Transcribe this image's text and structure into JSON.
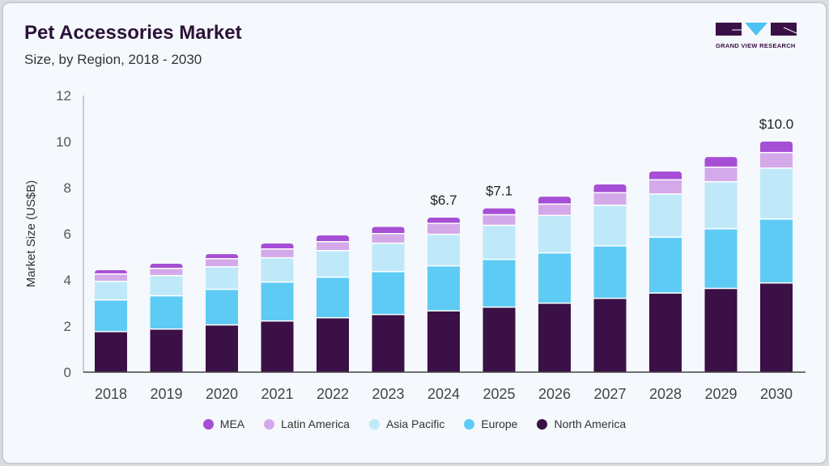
{
  "header": {
    "title": "Pet Accessories Market",
    "subtitle": "Size, by Region, 2018 - 2030",
    "logo_text": "GRAND VIEW RESEARCH"
  },
  "chart_data": {
    "type": "bar",
    "stacked": true,
    "title": "Pet Accessories Market",
    "subtitle": "Size, by Region, 2018 - 2030",
    "xlabel": "",
    "ylabel": "Market Size (US$B)",
    "ylim": [
      0,
      12
    ],
    "yticks": [
      0,
      2,
      4,
      6,
      8,
      10,
      12
    ],
    "grid": false,
    "legend_position": "bottom",
    "categories": [
      "2018",
      "2019",
      "2020",
      "2021",
      "2022",
      "2023",
      "2024",
      "2025",
      "2026",
      "2027",
      "2028",
      "2029",
      "2030"
    ],
    "series": [
      {
        "name": "North America",
        "color": "#3a1046",
        "values": [
          1.76,
          1.87,
          2.05,
          2.22,
          2.36,
          2.5,
          2.66,
          2.82,
          2.99,
          3.2,
          3.43,
          3.63,
          3.87
        ]
      },
      {
        "name": "Europe",
        "color": "#5ecbf5",
        "values": [
          1.37,
          1.44,
          1.54,
          1.69,
          1.76,
          1.86,
          1.95,
          2.07,
          2.18,
          2.28,
          2.42,
          2.59,
          2.77
        ]
      },
      {
        "name": "Asia Pacific",
        "color": "#bfe9f9",
        "values": [
          0.81,
          0.88,
          0.98,
          1.05,
          1.15,
          1.23,
          1.37,
          1.48,
          1.63,
          1.76,
          1.88,
          2.04,
          2.21
        ]
      },
      {
        "name": "Latin America",
        "color": "#d4a9ea",
        "values": [
          0.32,
          0.31,
          0.35,
          0.38,
          0.39,
          0.42,
          0.47,
          0.46,
          0.49,
          0.54,
          0.61,
          0.63,
          0.67
        ]
      },
      {
        "name": "MEA",
        "color": "#a64fd6",
        "values": [
          0.16,
          0.2,
          0.2,
          0.24,
          0.27,
          0.29,
          0.25,
          0.27,
          0.32,
          0.36,
          0.36,
          0.44,
          0.48
        ]
      }
    ],
    "annotations": [
      {
        "category": "2024",
        "label": "$6.7"
      },
      {
        "category": "2025",
        "label": "$7.1"
      },
      {
        "category": "2030",
        "label": "$10.0"
      }
    ],
    "legend_order": [
      "MEA",
      "Latin America",
      "Asia Pacific",
      "Europe",
      "North America"
    ]
  }
}
